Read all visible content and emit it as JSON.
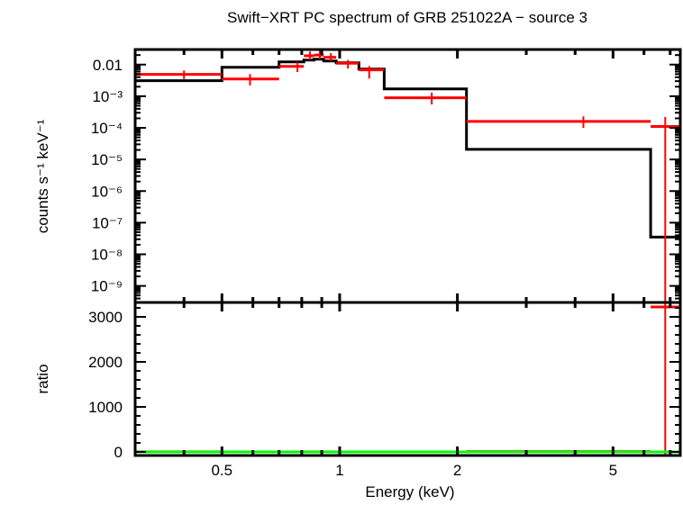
{
  "chart_data": [
    {
      "type": "line",
      "title": "Swift−XRT PC spectrum of GRB 251022A − source 3",
      "xlabel": "Energy (keV)",
      "ylabel": "counts s⁻¹ keV⁻¹",
      "xscale": "log",
      "yscale": "log",
      "xlim": [
        0.3,
        7.43
      ],
      "ylim": [
        3e-10,
        0.03
      ],
      "xticks": [
        0.5,
        1,
        2,
        5
      ],
      "xtick_labels": [
        "0.5",
        "1",
        "2",
        "5"
      ],
      "ytick_labels": [
        "0.01",
        "10⁻³",
        "10⁻⁴",
        "10⁻⁵",
        "10⁻⁶",
        "10⁻⁷",
        "10⁻⁸",
        "10⁻⁹"
      ],
      "yticks": [
        0.01,
        0.001,
        0.0001,
        1e-05,
        1e-06,
        1e-07,
        1e-08,
        1e-09
      ],
      "data": {
        "color": "#ff0000",
        "points": [
          {
            "e": 0.4,
            "elo": 0.3,
            "ehi": 0.5,
            "y": 0.0049,
            "ylo": 0.0035,
            "yhi": 0.0065
          },
          {
            "e": 0.59,
            "elo": 0.5,
            "ehi": 0.7,
            "y": 0.0035,
            "ylo": 0.0022,
            "yhi": 0.005
          },
          {
            "e": 0.78,
            "elo": 0.7,
            "ehi": 0.81,
            "y": 0.0088,
            "ylo": 0.0058,
            "yhi": 0.012
          },
          {
            "e": 0.84,
            "elo": 0.81,
            "ehi": 0.86,
            "y": 0.019,
            "ylo": 0.014,
            "yhi": 0.026
          },
          {
            "e": 0.89,
            "elo": 0.86,
            "ehi": 0.91,
            "y": 0.02,
            "ylo": 0.015,
            "yhi": 0.027
          },
          {
            "e": 0.95,
            "elo": 0.91,
            "ehi": 0.98,
            "y": 0.017,
            "ylo": 0.013,
            "yhi": 0.023
          },
          {
            "e": 1.05,
            "elo": 0.98,
            "ehi": 1.12,
            "y": 0.011,
            "ylo": 0.0075,
            "yhi": 0.014
          },
          {
            "e": 1.19,
            "elo": 1.12,
            "ehi": 1.3,
            "y": 0.0068,
            "ylo": 0.0036,
            "yhi": 0.009
          },
          {
            "e": 1.72,
            "elo": 1.3,
            "ehi": 2.11,
            "y": 0.00089,
            "ylo": 0.00055,
            "yhi": 0.0013
          },
          {
            "e": 4.2,
            "elo": 2.11,
            "ehi": 6.24,
            "y": 0.00016,
            "ylo": 0.0001,
            "yhi": 0.00023
          },
          {
            "e": 6.8,
            "elo": 6.24,
            "ehi": 7.43,
            "y": 0.00011,
            "ylo": 3e-10,
            "yhi": 0.00022
          }
        ]
      },
      "model": {
        "color": "#000000",
        "edges": [
          0.3,
          0.5,
          0.7,
          0.81,
          0.86,
          0.91,
          0.98,
          1.12,
          1.3,
          2.11,
          6.24,
          7.43
        ],
        "values": [
          0.0031,
          0.0082,
          0.0122,
          0.0139,
          0.0148,
          0.013,
          0.0114,
          0.0072,
          0.0017,
          2.1e-05,
          3.5e-08
        ]
      }
    },
    {
      "type": "scatter",
      "xlabel": "Energy (keV)",
      "ylabel": "ratio",
      "xscale": "log",
      "xlim": [
        0.3,
        7.43
      ],
      "ylim": [
        -80,
        3320
      ],
      "xticks": [
        0.5,
        1,
        2,
        5
      ],
      "xtick_labels": [
        "0.5",
        "1",
        "2",
        "5"
      ],
      "yticks": [
        0,
        1000,
        2000,
        3000
      ],
      "ytick_labels": [
        "0",
        "1000",
        "2000",
        "3000"
      ],
      "reference_line": {
        "y": 0,
        "color": "#00ff00"
      },
      "color": "#ff0000",
      "points": [
        {
          "e": 0.4,
          "elo": 0.3,
          "ehi": 0.5,
          "y": 1.6,
          "ylo": 1.1,
          "yhi": 2.1
        },
        {
          "e": 0.59,
          "elo": 0.5,
          "ehi": 0.7,
          "y": 0.43,
          "ylo": 0.27,
          "yhi": 0.61
        },
        {
          "e": 0.78,
          "elo": 0.7,
          "ehi": 0.81,
          "y": 0.72,
          "ylo": 0.48,
          "yhi": 0.98
        },
        {
          "e": 0.84,
          "elo": 0.81,
          "ehi": 0.86,
          "y": 1.37,
          "ylo": 1.0,
          "yhi": 1.87
        },
        {
          "e": 0.89,
          "elo": 0.86,
          "ehi": 0.91,
          "y": 1.35,
          "ylo": 1.0,
          "yhi": 1.82
        },
        {
          "e": 0.95,
          "elo": 0.91,
          "ehi": 0.98,
          "y": 1.31,
          "ylo": 1.0,
          "yhi": 1.77
        },
        {
          "e": 1.05,
          "elo": 0.98,
          "ehi": 1.12,
          "y": 0.96,
          "ylo": 0.66,
          "yhi": 1.23
        },
        {
          "e": 1.19,
          "elo": 1.12,
          "ehi": 1.3,
          "y": 0.94,
          "ylo": 0.5,
          "yhi": 1.25
        },
        {
          "e": 1.72,
          "elo": 1.3,
          "ehi": 2.11,
          "y": 0.52,
          "ylo": 0.32,
          "yhi": 0.76
        },
        {
          "e": 4.2,
          "elo": 2.11,
          "ehi": 6.24,
          "y": 7.6,
          "ylo": 4.8,
          "yhi": 11
        },
        {
          "e": 6.8,
          "elo": 6.24,
          "ehi": 7.43,
          "y": 3220,
          "ylo": -80,
          "yhi": 3320
        }
      ]
    }
  ]
}
